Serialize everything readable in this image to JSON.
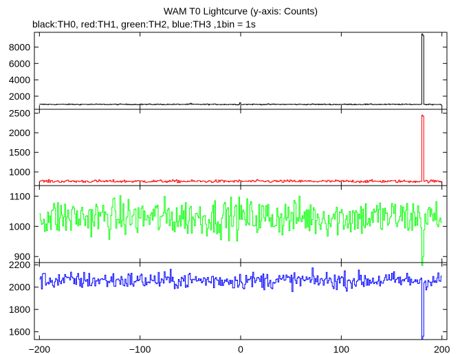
{
  "title": "WAM T0 Lightcurve (y-axis: Counts)",
  "subtitle": "black:TH0, red:TH1, green:TH2, blue:TH3 ,1bin = 1s",
  "chart_data": {
    "type": "line",
    "title": "WAM T0 Lightcurve (y-axis: Counts)",
    "subtitle": "black:TH0, red:TH1, green:TH2, blue:TH3 ,1bin = 1s",
    "xlim": [
      -205,
      205
    ],
    "x_ticks": [
      -200,
      -100,
      0,
      100,
      200
    ],
    "x_tick_labels": [
      "-200",
      "-100",
      "0",
      "100",
      "200"
    ],
    "bin_seconds": 1,
    "panels": [
      {
        "series_name": "TH0",
        "color": "#000000",
        "ylim": [
          400,
          9800
        ],
        "y_ticks": [
          2000,
          4000,
          6000,
          8000
        ],
        "y_tick_labels": [
          "2000",
          "4000",
          "6000",
          "8000"
        ],
        "baseline": 1000,
        "noise": 40,
        "points": [
          [
            -50,
            1130
          ],
          [
            -1,
            1200
          ],
          [
            178,
            1000
          ],
          [
            180,
            9600
          ],
          [
            181,
            9400
          ],
          [
            182,
            1000
          ]
        ]
      },
      {
        "series_name": "TH1",
        "color": "#ff0000",
        "ylim": [
          650,
          2600
        ],
        "y_ticks": [
          1000,
          1500,
          2000,
          2500
        ],
        "y_tick_labels": [
          "1000",
          "1500",
          "2000",
          "2500"
        ],
        "baseline": 760,
        "noise": 25,
        "points": [
          [
            178,
            760
          ],
          [
            180,
            2450
          ],
          [
            181,
            2420
          ],
          [
            182,
            760
          ]
        ]
      },
      {
        "series_name": "TH2",
        "color": "#00ff00",
        "ylim": [
          880,
          1135
        ],
        "y_ticks": [
          900,
          1000,
          1100
        ],
        "y_tick_labels": [
          "900",
          "1000",
          "1100"
        ],
        "baseline": 1030,
        "noise": 45,
        "points": [
          [
            180,
            870
          ],
          [
            181,
            900
          ]
        ]
      },
      {
        "series_name": "TH3",
        "color": "#0000ff",
        "ylim": [
          1530,
          2220
        ],
        "y_ticks": [
          1600,
          1800,
          2000,
          2200
        ],
        "y_tick_labels": [
          "1600",
          "1800",
          "2000",
          "2200"
        ],
        "baseline": 2060,
        "noise": 55,
        "points": [
          [
            180,
            1530
          ],
          [
            181,
            1560
          ]
        ]
      }
    ]
  }
}
